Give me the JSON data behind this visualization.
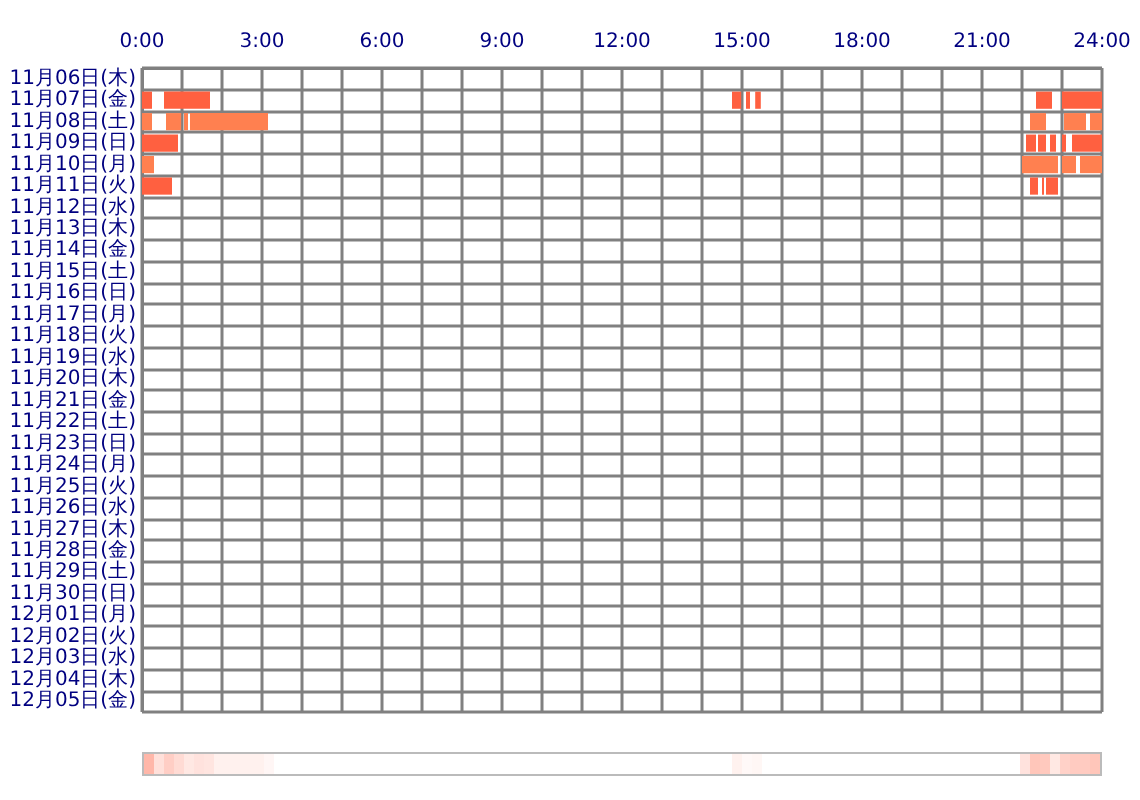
{
  "chart_data": {
    "type": "bar",
    "orientation": "horizontal",
    "grid": true,
    "categories": [
      "11月06日(木)",
      "11月07日(金)",
      "11月08日(土)",
      "11月09日(日)",
      "11月10日(月)",
      "11月11日(火)",
      "11月12日(水)",
      "11月13日(木)",
      "11月14日(金)",
      "11月15日(土)",
      "11月16日(日)",
      "11月17日(月)",
      "11月18日(火)",
      "11月19日(水)",
      "11月20日(木)",
      "11月21日(金)",
      "11月22日(土)",
      "11月23日(日)",
      "11月24日(月)",
      "11月25日(火)",
      "11月26日(水)",
      "11月27日(木)",
      "11月28日(金)",
      "11月29日(土)",
      "11月30日(日)",
      "12月01日(月)",
      "12月02日(火)",
      "12月03日(水)",
      "12月04日(木)",
      "12月05日(金)"
    ],
    "xlim": [
      0,
      24
    ],
    "xticks": [
      {
        "value": 0,
        "label": "0:00"
      },
      {
        "value": 1,
        "label": null
      },
      {
        "value": 2,
        "label": null
      },
      {
        "value": 3,
        "label": "3:00"
      },
      {
        "value": 4,
        "label": null
      },
      {
        "value": 5,
        "label": null
      },
      {
        "value": 6,
        "label": "6:00"
      },
      {
        "value": 7,
        "label": null
      },
      {
        "value": 8,
        "label": null
      },
      {
        "value": 9,
        "label": "9:00"
      },
      {
        "value": 10,
        "label": null
      },
      {
        "value": 11,
        "label": null
      },
      {
        "value": 12,
        "label": "12:00"
      },
      {
        "value": 13,
        "label": null
      },
      {
        "value": 14,
        "label": null
      },
      {
        "value": 15,
        "label": "15:00"
      },
      {
        "value": 16,
        "label": null
      },
      {
        "value": 17,
        "label": null
      },
      {
        "value": 18,
        "label": "18:00"
      },
      {
        "value": 19,
        "label": null
      },
      {
        "value": 20,
        "label": null
      },
      {
        "value": 21,
        "label": "21:00"
      },
      {
        "value": 22,
        "label": null
      },
      {
        "value": 23,
        "label": null
      },
      {
        "value": 24,
        "label": "24:00"
      }
    ],
    "series": [
      {
        "base": [
          null,
          0,
          0,
          0,
          0,
          0,
          null,
          null,
          null,
          null,
          null,
          null,
          null,
          null,
          null,
          null,
          null,
          null,
          null,
          null,
          null,
          null,
          null,
          null,
          null,
          null,
          null,
          null,
          null,
          null
        ],
        "values": [
          null,
          0.25,
          0.25,
          0.9,
          0.3,
          0.75,
          null,
          null,
          null,
          null,
          null,
          null,
          null,
          null,
          null,
          null,
          null,
          null,
          null,
          null,
          null,
          null,
          null,
          null,
          null,
          null,
          null,
          null,
          null,
          null
        ],
        "colors": [
          null,
          "#ff6040",
          "#ff8050",
          "#ff6040",
          "#ff8050",
          "#ff6040",
          null,
          null,
          null,
          null,
          null,
          null,
          null,
          null,
          null,
          null,
          null,
          null,
          null,
          null,
          null,
          null,
          null,
          null,
          null,
          null,
          null,
          null,
          null,
          null
        ]
      },
      {
        "base": [
          null,
          0.55,
          0.6,
          22.1,
          22.0,
          22.2,
          null,
          null,
          null,
          null,
          null,
          null,
          null,
          null,
          null,
          null,
          null,
          null,
          null,
          null,
          null,
          null,
          null,
          null,
          null,
          null,
          null,
          null,
          null,
          null
        ],
        "values": [
          null,
          1.15,
          0.38,
          0.25,
          0.9,
          0.2,
          null,
          null,
          null,
          null,
          null,
          null,
          null,
          null,
          null,
          null,
          null,
          null,
          null,
          null,
          null,
          null,
          null,
          null,
          null,
          null,
          null,
          null,
          null,
          null
        ],
        "colors": [
          null,
          "#ff6040",
          "#ff8050",
          "#ff6040",
          "#ff8050",
          "#ff6040",
          null,
          null,
          null,
          null,
          null,
          null,
          null,
          null,
          null,
          null,
          null,
          null,
          null,
          null,
          null,
          null,
          null,
          null,
          null,
          null,
          null,
          null,
          null,
          null
        ]
      },
      {
        "base": [
          null,
          14.75,
          1.05,
          22.4,
          23.0,
          22.5,
          null,
          null,
          null,
          null,
          null,
          null,
          null,
          null,
          null,
          null,
          null,
          null,
          null,
          null,
          null,
          null,
          null,
          null,
          null,
          null,
          null,
          null,
          null,
          null
        ],
        "values": [
          null,
          0.23,
          0.1,
          0.2,
          0.35,
          0.05,
          null,
          null,
          null,
          null,
          null,
          null,
          null,
          null,
          null,
          null,
          null,
          null,
          null,
          null,
          null,
          null,
          null,
          null,
          null,
          null,
          null,
          null,
          null,
          null
        ],
        "colors": [
          null,
          "#ff6040",
          "#ff8050",
          "#ff6040",
          "#ff8050",
          "#ff6040",
          null,
          null,
          null,
          null,
          null,
          null,
          null,
          null,
          null,
          null,
          null,
          null,
          null,
          null,
          null,
          null,
          null,
          null,
          null,
          null,
          null,
          null,
          null,
          null
        ]
      },
      {
        "base": [
          null,
          15.1,
          1.2,
          22.7,
          23.45,
          22.6,
          null,
          null,
          null,
          null,
          null,
          null,
          null,
          null,
          null,
          null,
          null,
          null,
          null,
          null,
          null,
          null,
          null,
          null,
          null,
          null,
          null,
          null,
          null,
          null
        ],
        "values": [
          null,
          0.1,
          1.95,
          0.15,
          0.55,
          0.3,
          null,
          null,
          null,
          null,
          null,
          null,
          null,
          null,
          null,
          null,
          null,
          null,
          null,
          null,
          null,
          null,
          null,
          null,
          null,
          null,
          null,
          null,
          null,
          null
        ],
        "colors": [
          null,
          "#ff6040",
          "#ff8050",
          "#ff6040",
          "#ff8050",
          "#ff6040",
          null,
          null,
          null,
          null,
          null,
          null,
          null,
          null,
          null,
          null,
          null,
          null,
          null,
          null,
          null,
          null,
          null,
          null,
          null,
          null,
          null,
          null,
          null,
          null
        ]
      },
      {
        "base": [
          null,
          15.33,
          22.2,
          23.0,
          null,
          null,
          null,
          null,
          null,
          null,
          null,
          null,
          null,
          null,
          null,
          null,
          null,
          null,
          null,
          null,
          null,
          null,
          null,
          null,
          null,
          null,
          null,
          null,
          null,
          null
        ],
        "values": [
          null,
          0.14,
          0.4,
          0.1,
          null,
          null,
          null,
          null,
          null,
          null,
          null,
          null,
          null,
          null,
          null,
          null,
          null,
          null,
          null,
          null,
          null,
          null,
          null,
          null,
          null,
          null,
          null,
          null,
          null,
          null
        ],
        "colors": [
          null,
          "#ff6040",
          "#ff8050",
          "#ff6040",
          null,
          null,
          null,
          null,
          null,
          null,
          null,
          null,
          null,
          null,
          null,
          null,
          null,
          null,
          null,
          null,
          null,
          null,
          null,
          null,
          null,
          null,
          null,
          null,
          null,
          null
        ]
      },
      {
        "base": [
          null,
          22.35,
          23.05,
          23.25,
          null,
          null,
          null,
          null,
          null,
          null,
          null,
          null,
          null,
          null,
          null,
          null,
          null,
          null,
          null,
          null,
          null,
          null,
          null,
          null,
          null,
          null,
          null,
          null,
          null,
          null
        ],
        "values": [
          null,
          0.4,
          0.55,
          0.75,
          null,
          null,
          null,
          null,
          null,
          null,
          null,
          null,
          null,
          null,
          null,
          null,
          null,
          null,
          null,
          null,
          null,
          null,
          null,
          null,
          null,
          null,
          null,
          null,
          null,
          null
        ],
        "colors": [
          null,
          "#ff6040",
          "#ff8050",
          "#ff6040",
          null,
          null,
          null,
          null,
          null,
          null,
          null,
          null,
          null,
          null,
          null,
          null,
          null,
          null,
          null,
          null,
          null,
          null,
          null,
          null,
          null,
          null,
          null,
          null,
          null,
          null
        ]
      },
      {
        "base": [
          null,
          23.0,
          23.7,
          null,
          null,
          null,
          null,
          null,
          null,
          null,
          null,
          null,
          null,
          null,
          null,
          null,
          null,
          null,
          null,
          null,
          null,
          null,
          null,
          null,
          null,
          null,
          null,
          null,
          null,
          null
        ],
        "values": [
          null,
          1.0,
          0.3,
          null,
          null,
          null,
          null,
          null,
          null,
          null,
          null,
          null,
          null,
          null,
          null,
          null,
          null,
          null,
          null,
          null,
          null,
          null,
          null,
          null,
          null,
          null,
          null,
          null,
          null,
          null
        ],
        "colors": [
          null,
          "#ff6040",
          "#ff8050",
          null,
          null,
          null,
          null,
          null,
          null,
          null,
          null,
          null,
          null,
          null,
          null,
          null,
          null,
          null,
          null,
          null,
          null,
          null,
          null,
          null,
          null,
          null,
          null,
          null,
          null,
          null
        ]
      }
    ]
  }
}
